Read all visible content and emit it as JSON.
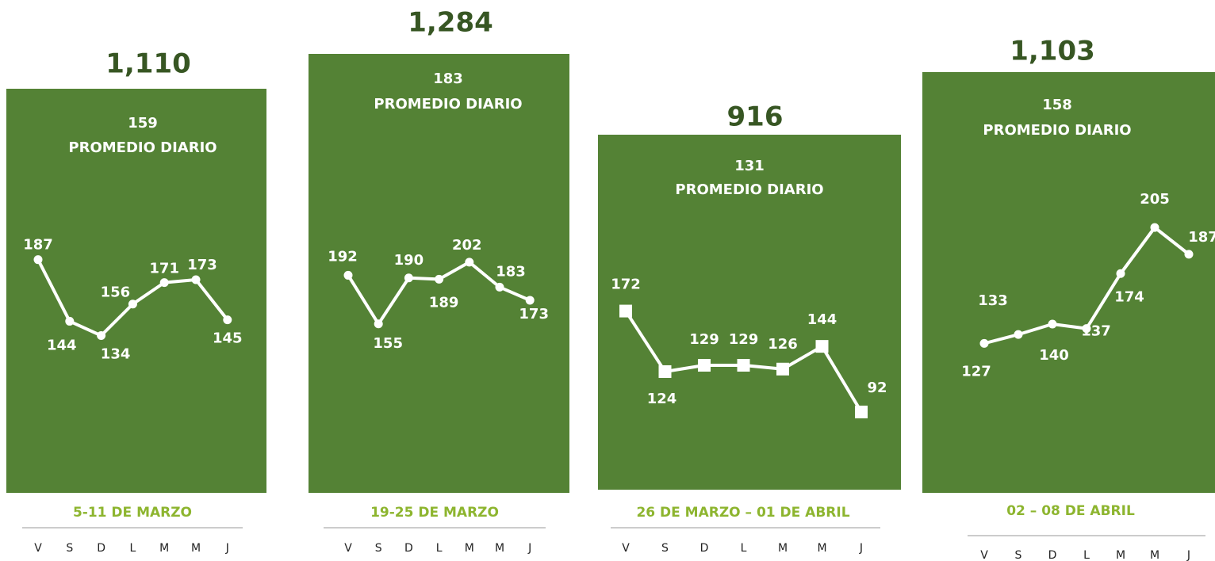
{
  "chart_data": [
    {
      "type": "line",
      "title": "1,110",
      "average": 159,
      "average_label": "PROMEDIO DIARIO",
      "xlabel": "5-11 DE MARZO",
      "categories": [
        "V",
        "S",
        "D",
        "L",
        "M",
        "M",
        "J"
      ],
      "values": [
        187,
        144,
        134,
        156,
        171,
        173,
        145
      ],
      "ylim": [
        100,
        220
      ],
      "marker": "circle",
      "line_color": "#ffffff",
      "background": "#548235"
    },
    {
      "type": "line",
      "title": "1,284",
      "average": 183,
      "average_label": "PROMEDIO DIARIO",
      "xlabel": "19-25 DE MARZO",
      "categories": [
        "V",
        "S",
        "D",
        "L",
        "M",
        "M",
        "J"
      ],
      "values": [
        192,
        155,
        190,
        189,
        202,
        183,
        173
      ],
      "ylim": [
        100,
        220
      ],
      "marker": "circle",
      "line_color": "#ffffff",
      "background": "#548235"
    },
    {
      "type": "line",
      "title": "916",
      "average": 131,
      "average_label": "PROMEDIO DIARIO",
      "xlabel": "26 DE MARZO – 01 DE ABRIL",
      "categories": [
        "V",
        "S",
        "D",
        "L",
        "M",
        "M",
        "J"
      ],
      "values": [
        172,
        124,
        129,
        129,
        126,
        144,
        92
      ],
      "ylim": [
        80,
        200
      ],
      "marker": "square",
      "line_color": "#ffffff",
      "background": "#548235"
    },
    {
      "type": "line",
      "title": "1,103",
      "average": 158,
      "average_label": "PROMEDIO DIARIO",
      "xlabel": "02 – 08 DE ABRIL",
      "categories": [
        "V",
        "S",
        "D",
        "L",
        "M",
        "M",
        "J"
      ],
      "values": [
        127,
        133,
        140,
        137,
        174,
        205,
        187
      ],
      "ylim": [
        100,
        220
      ],
      "marker": "circle",
      "line_color": "#ffffff",
      "background": "#548235"
    }
  ]
}
